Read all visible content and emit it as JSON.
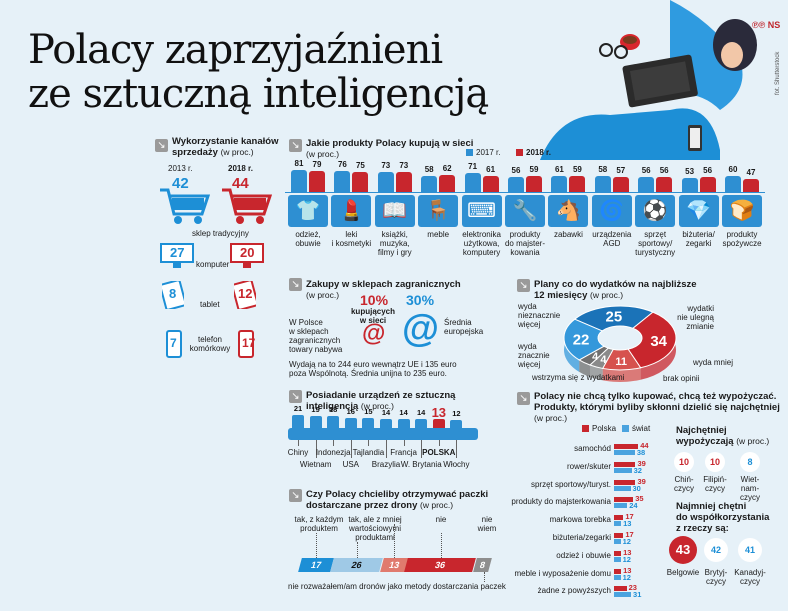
{
  "brand": {
    "logo": "℗℗ NS",
    "photo_credit": "fot. Shutterstock"
  },
  "title": {
    "line1": "Polacy zaprzyjaźnieni",
    "line2": "ze sztuczną inteligencją"
  },
  "channels": {
    "title_line1": "Wykorzystanie kanałów",
    "title_line2": "sprzedaży",
    "unit": "(w proc.)",
    "year_2013": "2013 r.",
    "year_2018": "2018 r.",
    "colors": {
      "y2013": "#1d8fd6",
      "y2018": "#c8262d"
    },
    "chart_data": {
      "type": "table",
      "series": [
        {
          "name": "2013 r.",
          "values": [
            42,
            27,
            8,
            7
          ]
        },
        {
          "name": "2018 r.",
          "values": [
            44,
            20,
            12,
            17
          ]
        }
      ],
      "categories": [
        "sklep tradycyjny",
        "komputer",
        "tablet",
        "telefon komórkowy"
      ]
    },
    "labels": {
      "sklep": "sklep tradycyjny",
      "komputer": "komputer",
      "tablet": "tablet",
      "telefon1": "telefon",
      "telefon2": "komórkowy"
    },
    "icons": [
      "cart-icon",
      "monitor-icon",
      "tablet-icon",
      "phone-icon"
    ]
  },
  "products": {
    "title": "Jakie produkty Polacy kupują w sieci",
    "unit": "(w proc.)",
    "legend_2017": "2017 r.",
    "legend_2018": "2018 r.",
    "chart_data": {
      "type": "bar",
      "categories": [
        "odzież, obuwie",
        "leki i kosmetyki",
        "książki, muzyka, filmy i gry",
        "meble",
        "elektronika użytkowa, komputery",
        "produkty do majsterkowania",
        "zabawki",
        "urządzenia AGD",
        "sprzęt sportowy/ turystyczny",
        "biżuteria/ zegarki",
        "produkty spożywcze"
      ],
      "series": [
        {
          "name": "2017 r.",
          "values": [
            81,
            76,
            73,
            58,
            71,
            56,
            61,
            58,
            56,
            53,
            60
          ]
        },
        {
          "name": "2018 r.",
          "values": [
            79,
            75,
            73,
            62,
            61,
            59,
            59,
            57,
            56,
            56,
            47
          ]
        }
      ]
    },
    "labels": [
      [
        "odzież,",
        "obuwie",
        ""
      ],
      [
        "leki",
        "i kosmetyki",
        ""
      ],
      [
        "książki,",
        "muzyka,",
        "filmy i gry"
      ],
      [
        "meble",
        "",
        ""
      ],
      [
        "elektronika",
        "użytkowa,",
        "komputery"
      ],
      [
        "produkty",
        "do majster-",
        "kowania"
      ],
      [
        "zabawki",
        "",
        ""
      ],
      [
        "urządzenia",
        "AGD",
        ""
      ],
      [
        "sprzęt",
        "sportowy/",
        "turystyczny"
      ],
      [
        "biżuteria/",
        "zegarki",
        ""
      ],
      [
        "produkty",
        "spożywcze",
        ""
      ]
    ],
    "icons": [
      "hanger-icon",
      "lipstick-icon",
      "book-icon",
      "table-icon",
      "keyboard-icon",
      "tools-icon",
      "rocking-horse-icon",
      "washing-machine-icon",
      "ball-icon",
      "diamond-icon",
      "bread-icon"
    ],
    "glyphs": [
      "👕",
      "💄",
      "📖",
      "🪑",
      "⌨",
      "🔧",
      "🐴",
      "🌀",
      "⚽",
      "💎",
      "🍞"
    ]
  },
  "foreign": {
    "title": "Zakupy w sklepach zagranicznych",
    "unit": "(w proc.)",
    "pl_text": [
      "W Polsce",
      "w sklepach",
      "zagranicznych",
      "towary nabywa"
    ],
    "pct_pl": "10%",
    "pct_eu": "30%",
    "kup1": "kupujących",
    "kup2": "w sieci",
    "eu_text1": "Średnia",
    "eu_text2": "europejska",
    "spend1": "Wydają na to 244 euro wewnątrz UE i 135 euro",
    "spend2": "poza Wspólnotą. Średnia unijna to 235 euro.",
    "at": "@"
  },
  "ai_devices": {
    "title_line1": "Posiadanie urządzeń ze sztuczną",
    "title_line2": "inteligencją",
    "unit": "(w proc.)",
    "chart_data": {
      "type": "bar",
      "categories": [
        "Chiny",
        "Wietnam",
        "Indonezja",
        "USA",
        "Tajlandia",
        "Brazylia",
        "Francja",
        "W. Brytania",
        "POLSKA",
        "Włochy"
      ],
      "values": [
        21,
        19,
        18,
        16,
        15,
        14,
        14,
        14,
        13,
        12
      ]
    },
    "highlight_color": "#c8262d",
    "base_color": "#2e8fd2"
  },
  "drones": {
    "title_line1": "Czy Polacy chcieliby otrzymywać paczki",
    "title_line2": "dostarczane przez drony",
    "unit": "(w proc.)",
    "chart_data": {
      "type": "bar",
      "categories": [
        "tak, z każdym produktem",
        "tak, ale z mniej wartościowymi produktami",
        "nie",
        "nie wiem",
        "nie rozważałem/am dronów jako metody dostarczania paczek"
      ],
      "values": [
        17,
        26,
        13,
        36,
        8
      ]
    },
    "labels": [
      [
        "tak, z każdym",
        "produktem"
      ],
      [
        "tak, ale z mniej",
        "wartościowymi",
        "produktami"
      ],
      [
        "nie"
      ],
      [
        "nie",
        "wiem"
      ]
    ],
    "bottom_label": "nie rozważałem/am dronów jako metody dostarczania paczek",
    "colors": [
      "#1d8fd6",
      "#9fc9e6",
      "#e07a6e",
      "#c8262d",
      "#8e8e8e"
    ]
  },
  "plans": {
    "title_line1": "Plany co do wydatków na najbliższe",
    "title_line2": "12 miesięcy",
    "unit": "(w proc.)",
    "chart_data": {
      "type": "pie",
      "categories": [
        "wyda nieznacznie więcej",
        "wydatki nie ulegną zmianie",
        "wyda mniej",
        "brak opinii",
        "wstrzyma się z wydatkami",
        "wyda znacznie więcej"
      ],
      "values": [
        25,
        34,
        11,
        4,
        4,
        22
      ]
    },
    "labels": [
      [
        "wyda",
        "nieznacznie",
        "więcej"
      ],
      [
        "wydatki",
        "nie ulegną",
        "zmianie"
      ],
      [
        "wyda mniej"
      ],
      [
        "brak opinii"
      ],
      [
        "wstrzyma się z wydatkami"
      ],
      [
        "wyda",
        "znacznie",
        "więcej"
      ]
    ],
    "colors": [
      "#1b73b8",
      "#c8262d",
      "#d6524e",
      "#8a8a8a",
      "#6f6f6f",
      "#3498db"
    ]
  },
  "sharing": {
    "title_line1": "Polacy nie chcą tylko kupować, chcą też wypożyczać.",
    "title_line2": "Produkty, którymi byliby skłonni dzielić się najchętniej",
    "unit": "(w proc.)",
    "legend_pl": "Polska",
    "legend_world": "świat",
    "chart_data": {
      "type": "bar",
      "categories": [
        "samochód",
        "rower/skuter",
        "sprzęt sportowy/turyst.",
        "produkty do majsterkowania",
        "markowa torebka",
        "biżuteria/zegarki",
        "odzież i obuwie",
        "meble i wyposażenie domu",
        "żadne z powyższych"
      ],
      "series": [
        {
          "name": "Polska",
          "values": [
            44,
            39,
            39,
            35,
            17,
            17,
            13,
            13,
            23
          ]
        },
        {
          "name": "świat",
          "values": [
            38,
            32,
            30,
            24,
            13,
            12,
            12,
            12,
            31
          ]
        }
      ]
    },
    "renters": {
      "title_line1": "Najchętniej",
      "title_line2": "wypożyczają",
      "unit": "(w proc.)",
      "values": [
        10,
        10,
        8
      ],
      "labels": [
        [
          "Chiń-",
          "czycy"
        ],
        [
          "Filipiń-",
          "czycy"
        ],
        [
          "Wiet-",
          "nam-",
          "czycy"
        ]
      ],
      "colors": [
        "#c8262d",
        "#c8262d",
        "#1d8fd6"
      ]
    },
    "sharers": {
      "title_line1": "Najmniej chętni",
      "title_line2": "do współkorzystania",
      "title_line3": "z rzeczy są:",
      "values": [
        43,
        42,
        41
      ],
      "labels": [
        [
          "Belgowie"
        ],
        [
          "Brytyj-",
          "czycy"
        ],
        [
          "Kanadyj-",
          "czycy"
        ]
      ],
      "colors": [
        "#c8262d",
        "#1d8fd6",
        "#1d8fd6"
      ]
    }
  }
}
